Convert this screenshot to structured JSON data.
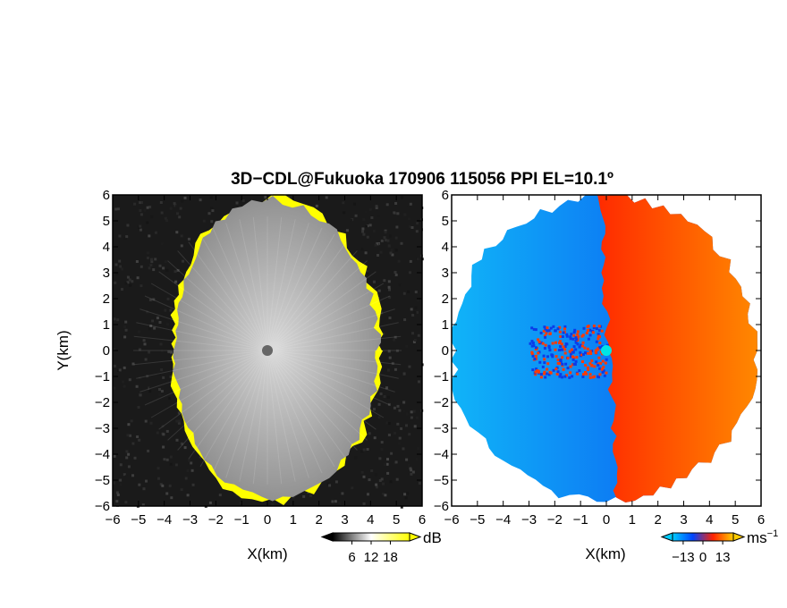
{
  "title": "3D−CDL@Fukuoka 170906 115056 PPI EL=10.1º",
  "chart_data": [
    {
      "type": "heatmap",
      "name": "snr-ppi",
      "xlabel": "X(km)",
      "ylabel": "Y(km)",
      "xlim": [
        -6,
        6
      ],
      "ylim": [
        -6,
        6
      ],
      "xticks": [
        "−6",
        "−5",
        "−4",
        "−3",
        "−2",
        "−1",
        "0",
        "1",
        "2",
        "3",
        "4",
        "5",
        "6"
      ],
      "yticks": [
        "6",
        "5",
        "4",
        "3",
        "2",
        "1",
        "0",
        "−1",
        "−2",
        "−3",
        "−4",
        "−5",
        "−6"
      ],
      "colorbar": {
        "unit": "dB",
        "ticks": [
          "6",
          "12",
          "18"
        ],
        "range": [
          0,
          24
        ],
        "colors": [
          "#000000",
          "#ffffff",
          "#ffff00"
        ]
      },
      "echo_radius_km": {
        "north": 5.8,
        "east": 4.3,
        "south": 5.7,
        "west": 3.6
      }
    },
    {
      "type": "heatmap",
      "name": "doppler-velocity-ppi",
      "xlabel": "X(km)",
      "xlim": [
        -6,
        6
      ],
      "ylim": [
        -6,
        6
      ],
      "xticks": [
        "−6",
        "−5",
        "−4",
        "−3",
        "−2",
        "−1",
        "0",
        "1",
        "2",
        "3",
        "4",
        "5",
        "6"
      ],
      "yticks": [
        "6",
        "5",
        "4",
        "3",
        "2",
        "1",
        "0",
        "−1",
        "−2",
        "−3",
        "−4",
        "−5",
        "−6"
      ],
      "colorbar": {
        "unit": "ms",
        "unit_exp": "−1",
        "ticks": [
          "−13",
          "0",
          "13"
        ],
        "range": [
          -20,
          20
        ],
        "colors": [
          "#00ccff",
          "#0044ff",
          "#ff2200",
          "#ffcc00"
        ]
      },
      "echo_radius_km": {
        "north": 5.9,
        "east": 5.8,
        "south": 5.8,
        "west": 6.0
      }
    }
  ]
}
